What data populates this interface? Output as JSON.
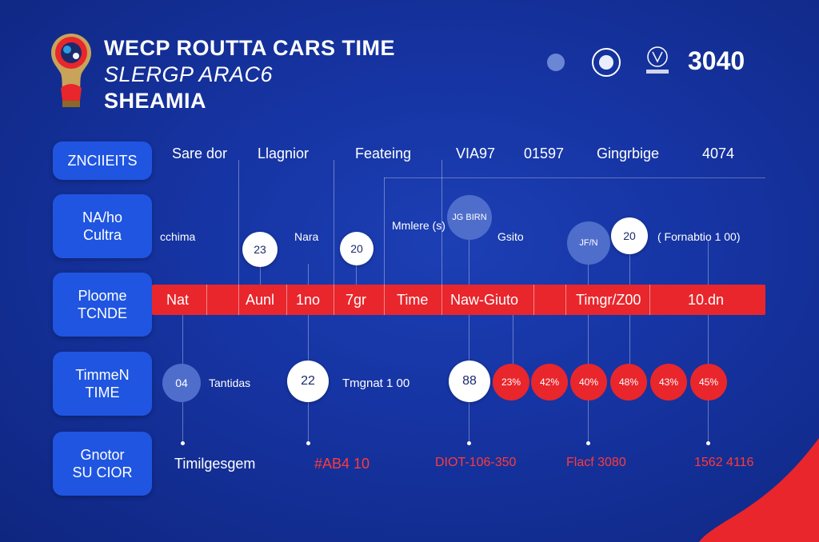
{
  "header": {
    "title_line1": "WECP ROUTTA CARS TIME",
    "title_line2": "SLERGP ARAC6",
    "title_line3": "SHEAMIA",
    "number": "3040",
    "emblem_icon": "emblem-icon"
  },
  "sidebar": {
    "items": [
      {
        "line1": "ZNCIIEITS",
        "line2": ""
      },
      {
        "line1": "NA/ho",
        "line2": "Cultra"
      },
      {
        "line1": "Ploome",
        "line2": "TCNDE"
      },
      {
        "line1": "TimmeN",
        "line2": "TIME"
      },
      {
        "line1": "Gnotor",
        "line2": "SU CIOR"
      }
    ]
  },
  "columns": [
    "Sare dor",
    "Llagnior",
    "Feateing",
    "VIA97",
    "01597",
    "Gingrbige",
    "4074"
  ],
  "row_cultra": {
    "left_label": "cchima",
    "nara_label": "Nara",
    "mid_label": "Mmlere (s)",
    "right_label": "Gsito",
    "far_label": "( Fornabtio 1 00)",
    "node_23": "23",
    "node_20a": "20",
    "node_top_blue": "JG BIRN",
    "node_mid_blue": "JF/N",
    "node_20b": "20"
  },
  "redbar": {
    "labels": [
      "Nat",
      "Aunl",
      "1no",
      "7gr",
      "Time",
      "Naw-Giuto",
      "Timgr/Z00",
      "10.dn"
    ]
  },
  "row_timmen": {
    "node_04": "04",
    "label_tamtidas": "Tantidas",
    "node_22": "22",
    "label_tmgnat": "Tmgnat 1 00",
    "node_88": "88",
    "red_nodes": [
      "23%",
      "42%",
      "40%",
      "48%",
      "43%",
      "45%"
    ]
  },
  "row_bottom": {
    "label_a": "Timilgesgem",
    "label_b": "#AB4 10",
    "label_c": "DIOT-106-350",
    "label_d": "Flacf 3080",
    "label_e": "1562 4116"
  },
  "colors": {
    "background": "#1634a3",
    "accent_red": "#e8262c",
    "side_button": "#1f55e0",
    "light_blue_node": "#4f6ecc"
  }
}
